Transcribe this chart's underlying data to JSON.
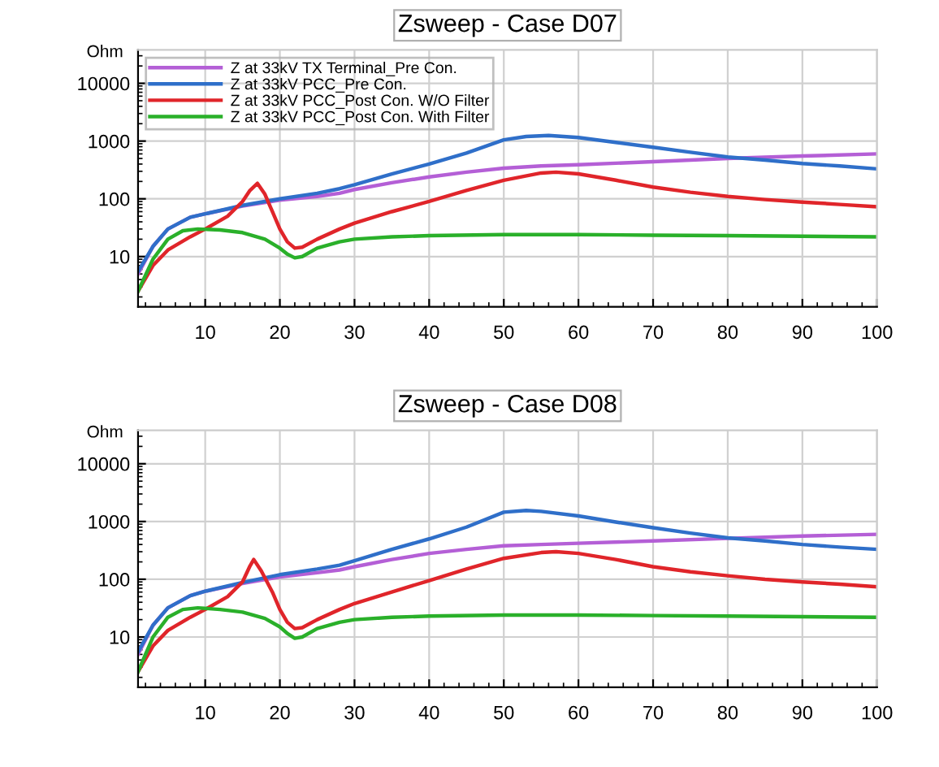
{
  "chart_data": [
    {
      "type": "line",
      "title": "Zsweep - Case D07",
      "ylabel": "Ohm",
      "log": "y",
      "grid": true,
      "legend": "top left",
      "marker": "none",
      "line_style": "solid",
      "xlim": [
        1,
        100
      ],
      "xticks": [
        10,
        20,
        30,
        40,
        50,
        60,
        70,
        80,
        90,
        100
      ],
      "ylim": [
        1.35,
        38000
      ],
      "yticks": [
        10,
        100,
        1000,
        10000
      ],
      "series": [
        {
          "name": "Z at 33kV TX Terminal_Pre Con.",
          "color": "#b45fd6",
          "x": [
            1,
            3,
            5,
            8,
            10,
            15,
            20,
            25,
            28,
            30,
            35,
            40,
            45,
            50,
            55,
            60,
            70,
            80,
            90,
            100
          ],
          "values": [
            5,
            15,
            30,
            48,
            55,
            75,
            95,
            110,
            125,
            145,
            190,
            240,
            290,
            340,
            370,
            390,
            440,
            500,
            550,
            600
          ]
        },
        {
          "name": "Z at 33kV PCC_Pre Con.",
          "color": "#2f6fc9",
          "x": [
            1,
            3,
            5,
            8,
            10,
            15,
            20,
            25,
            28,
            30,
            35,
            40,
            45,
            50,
            53,
            56,
            60,
            65,
            70,
            75,
            80,
            85,
            90,
            95,
            100
          ],
          "values": [
            5.5,
            15,
            30,
            48,
            55,
            77,
            100,
            125,
            150,
            175,
            270,
            400,
            620,
            1050,
            1200,
            1250,
            1150,
            950,
            780,
            640,
            530,
            470,
            410,
            370,
            330
          ]
        },
        {
          "name": "Z at 33kV PCC_Post Con. W/O Filter",
          "color": "#e0252a",
          "x": [
            1,
            3,
            5,
            8,
            10,
            13,
            15,
            16,
            17,
            18,
            19,
            20,
            21,
            22,
            23,
            25,
            28,
            30,
            35,
            40,
            45,
            50,
            55,
            57,
            60,
            65,
            70,
            75,
            80,
            85,
            90,
            95,
            100
          ],
          "values": [
            2.5,
            7,
            13,
            22,
            30,
            50,
            90,
            140,
            185,
            120,
            60,
            30,
            18,
            14,
            14.5,
            20,
            30,
            38,
            60,
            90,
            140,
            210,
            280,
            290,
            270,
            210,
            160,
            130,
            110,
            97,
            88,
            80,
            73
          ]
        },
        {
          "name": "Z at 33kV PCC_Post Con. With Filter",
          "color": "#2ab02a",
          "x": [
            1,
            3,
            5,
            7,
            9,
            12,
            15,
            18,
            20,
            21,
            22,
            23,
            25,
            28,
            30,
            35,
            40,
            50,
            60,
            70,
            80,
            90,
            100
          ],
          "values": [
            2.5,
            9,
            20,
            28,
            30,
            29,
            26,
            20,
            14,
            11,
            9.5,
            10,
            14,
            18,
            20,
            22,
            23,
            24,
            24,
            23.5,
            23,
            22.5,
            22
          ]
        }
      ]
    },
    {
      "type": "line",
      "title": "Zsweep - Case D08",
      "ylabel": "Ohm",
      "log": "y",
      "grid": true,
      "legend": false,
      "marker": "none",
      "line_style": "solid",
      "xlim": [
        1,
        100
      ],
      "xticks": [
        10,
        20,
        30,
        40,
        50,
        60,
        70,
        80,
        90,
        100
      ],
      "ylim": [
        1.35,
        38000
      ],
      "yticks": [
        10,
        100,
        1000,
        10000
      ],
      "series": [
        {
          "color": "#b45fd6",
          "x": [
            1,
            3,
            5,
            8,
            10,
            15,
            20,
            25,
            28,
            30,
            35,
            40,
            45,
            50,
            55,
            60,
            70,
            80,
            90,
            100
          ],
          "values": [
            5,
            16,
            32,
            52,
            62,
            85,
            110,
            130,
            145,
            165,
            220,
            280,
            330,
            380,
            400,
            420,
            460,
            510,
            560,
            600
          ]
        },
        {
          "color": "#2f6fc9",
          "x": [
            1,
            3,
            5,
            8,
            10,
            15,
            20,
            25,
            28,
            30,
            35,
            40,
            45,
            50,
            53,
            55,
            60,
            65,
            70,
            75,
            80,
            85,
            90,
            95,
            100
          ],
          "values": [
            5.5,
            16,
            32,
            52,
            62,
            88,
            120,
            150,
            175,
            210,
            330,
            500,
            800,
            1450,
            1550,
            1500,
            1250,
            980,
            780,
            630,
            520,
            460,
            400,
            360,
            330
          ]
        },
        {
          "color": "#e0252a",
          "x": [
            1,
            3,
            5,
            8,
            10,
            13,
            15,
            16,
            16.5,
            17.5,
            19,
            20,
            21,
            22,
            23,
            25,
            28,
            30,
            35,
            40,
            45,
            50,
            55,
            57,
            60,
            65,
            70,
            75,
            80,
            85,
            90,
            95,
            100
          ],
          "values": [
            2.5,
            7,
            13,
            22,
            30,
            50,
            90,
            170,
            220,
            140,
            60,
            30,
            18,
            14,
            14.5,
            20,
            30,
            38,
            60,
            95,
            150,
            230,
            290,
            300,
            280,
            220,
            165,
            135,
            115,
            100,
            90,
            82,
            74
          ]
        },
        {
          "color": "#2ab02a",
          "x": [
            1,
            3,
            5,
            7,
            9,
            12,
            15,
            18,
            20,
            21,
            22,
            23,
            25,
            28,
            30,
            35,
            40,
            50,
            60,
            70,
            80,
            90,
            100
          ],
          "values": [
            2.5,
            10,
            22,
            30,
            32,
            30,
            27,
            21,
            15,
            11.5,
            9.5,
            10,
            14,
            18,
            20,
            22,
            23,
            24,
            24,
            23.5,
            23,
            22.5,
            22
          ]
        }
      ]
    }
  ]
}
